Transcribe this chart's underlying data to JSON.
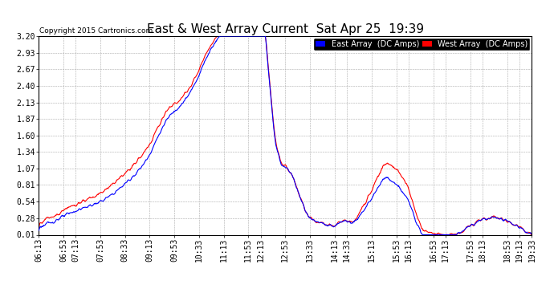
{
  "title": "East & West Array Current  Sat Apr 25  19:39",
  "copyright": "Copyright 2015 Cartronics.com",
  "legend_east": "East Array  (DC Amps)",
  "legend_west": "West Array  (DC Amps)",
  "east_color": "#0000FF",
  "west_color": "#FF0000",
  "background_color": "#FFFFFF",
  "plot_bg_color": "#FFFFFF",
  "grid_color": "#AAAAAA",
  "ylim": [
    0.01,
    3.2
  ],
  "yticks": [
    0.01,
    0.28,
    0.54,
    0.81,
    1.07,
    1.34,
    1.6,
    1.87,
    2.13,
    2.4,
    2.67,
    2.93,
    3.2
  ],
  "xtick_labels": [
    "06:13",
    "06:53",
    "07:13",
    "07:53",
    "08:33",
    "09:13",
    "09:53",
    "10:33",
    "11:13",
    "11:53",
    "12:13",
    "12:53",
    "13:33",
    "14:13",
    "14:33",
    "15:13",
    "15:53",
    "16:13",
    "16:53",
    "17:13",
    "17:53",
    "18:13",
    "18:53",
    "19:13",
    "19:33"
  ],
  "title_fontsize": 11,
  "tick_fontsize": 7,
  "line_width": 0.8
}
